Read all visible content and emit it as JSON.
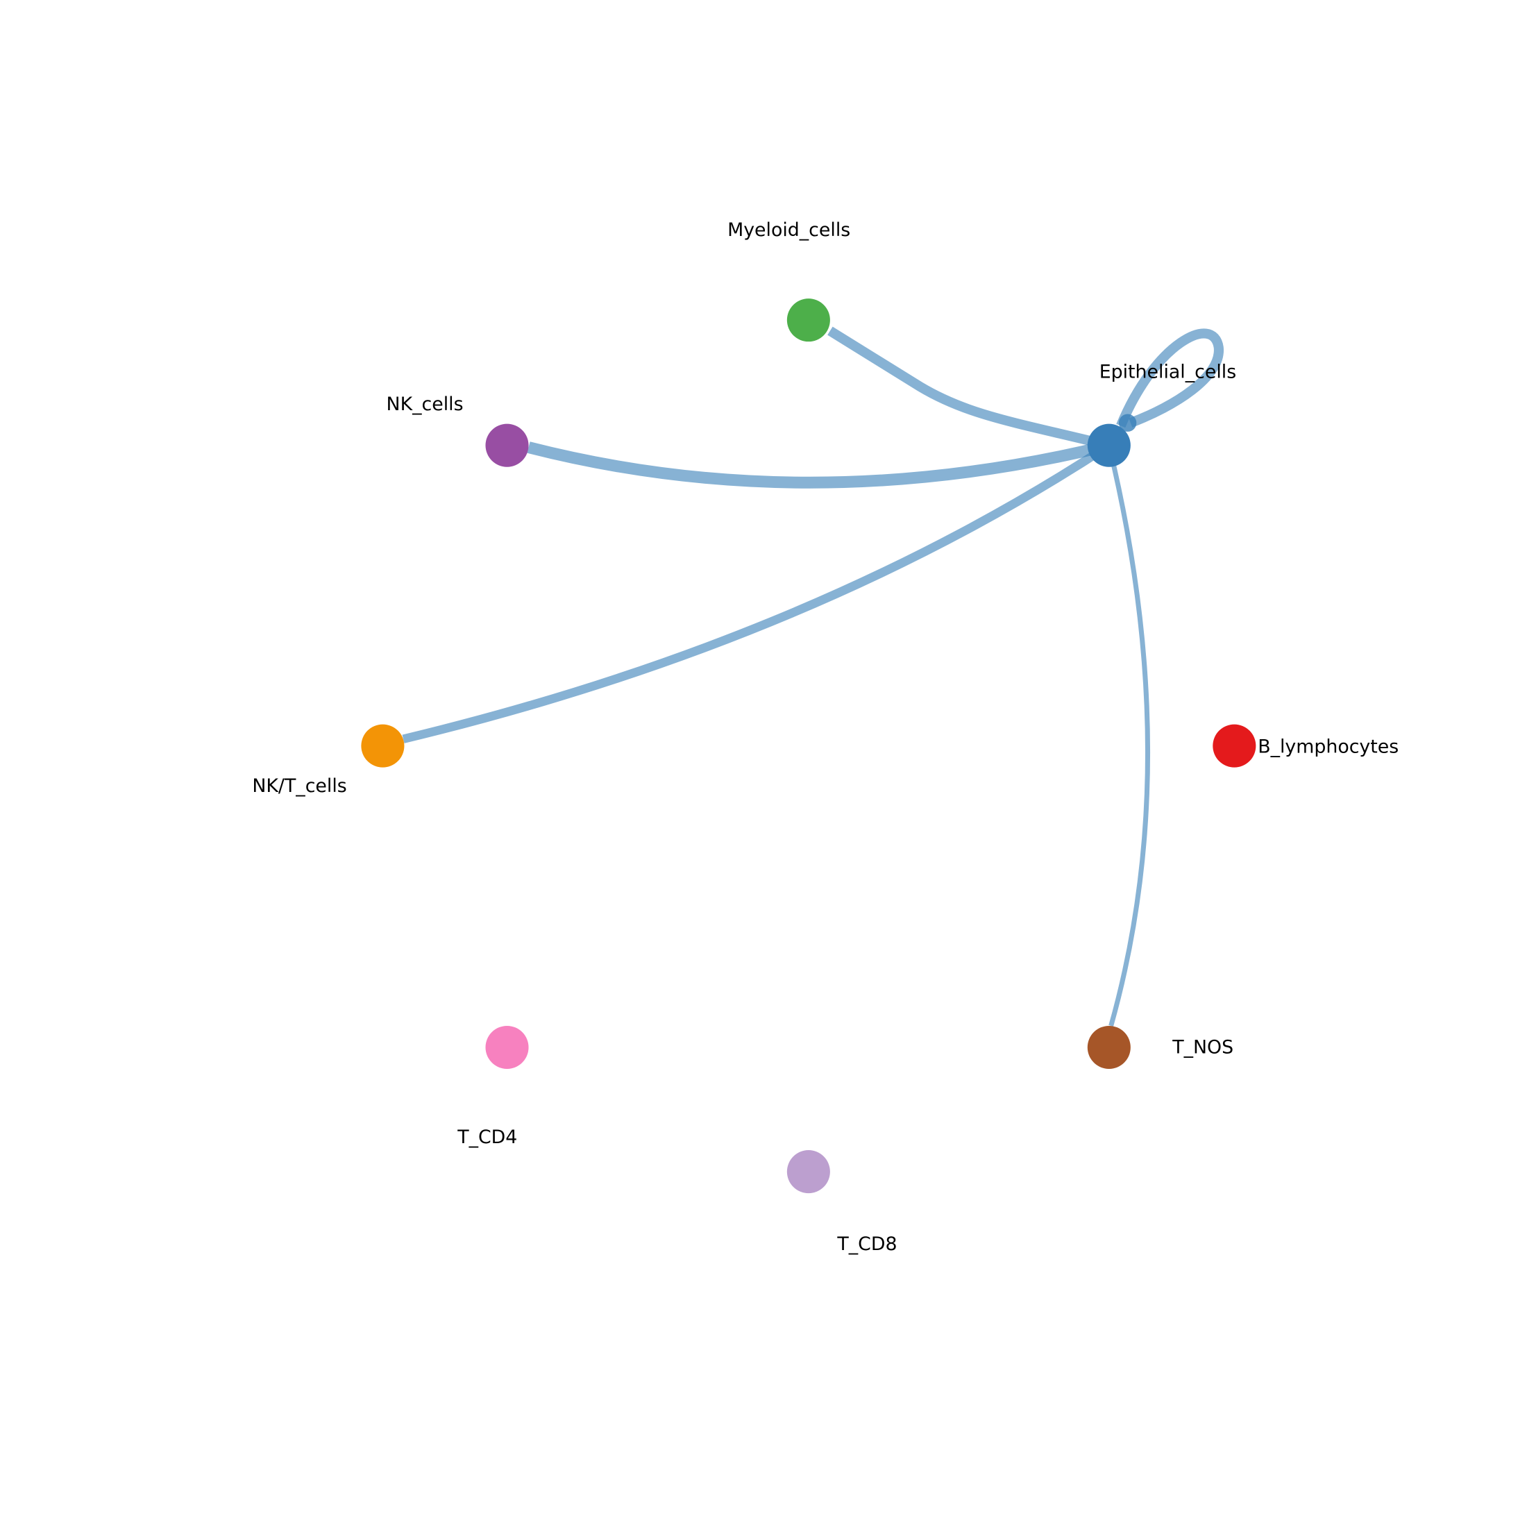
{
  "diagram": {
    "type": "network",
    "edge_color": "#377eb8",
    "nodes": [
      {
        "id": "Myeloid_cells",
        "label": "Myeloid_cells",
        "color": "#4daf4a"
      },
      {
        "id": "NK_cells",
        "label": "NK_cells",
        "color": "#984ea3"
      },
      {
        "id": "Epithelial_cells",
        "label": "Epithelial_cells",
        "color": "#377eb8"
      },
      {
        "id": "NK/T_cells",
        "label": "NK/T_cells",
        "color": "#f39406"
      },
      {
        "id": "B_lymphocytes",
        "label": "B_lymphocytes",
        "color": "#e41a1c"
      },
      {
        "id": "T_NOS",
        "label": "T_NOS",
        "color": "#a65628"
      },
      {
        "id": "T_CD4",
        "label": "T_CD4",
        "color": "#f781bf"
      },
      {
        "id": "T_CD8",
        "label": "T_CD8",
        "color": "#bc9fcf"
      }
    ],
    "edges": [
      {
        "source": "Epithelial_cells",
        "target": "Myeloid_cells"
      },
      {
        "source": "Epithelial_cells",
        "target": "NK_cells"
      },
      {
        "source": "Epithelial_cells",
        "target": "NK/T_cells"
      },
      {
        "source": "Epithelial_cells",
        "target": "T_NOS"
      },
      {
        "source": "Epithelial_cells",
        "target": "Epithelial_cells"
      }
    ]
  }
}
